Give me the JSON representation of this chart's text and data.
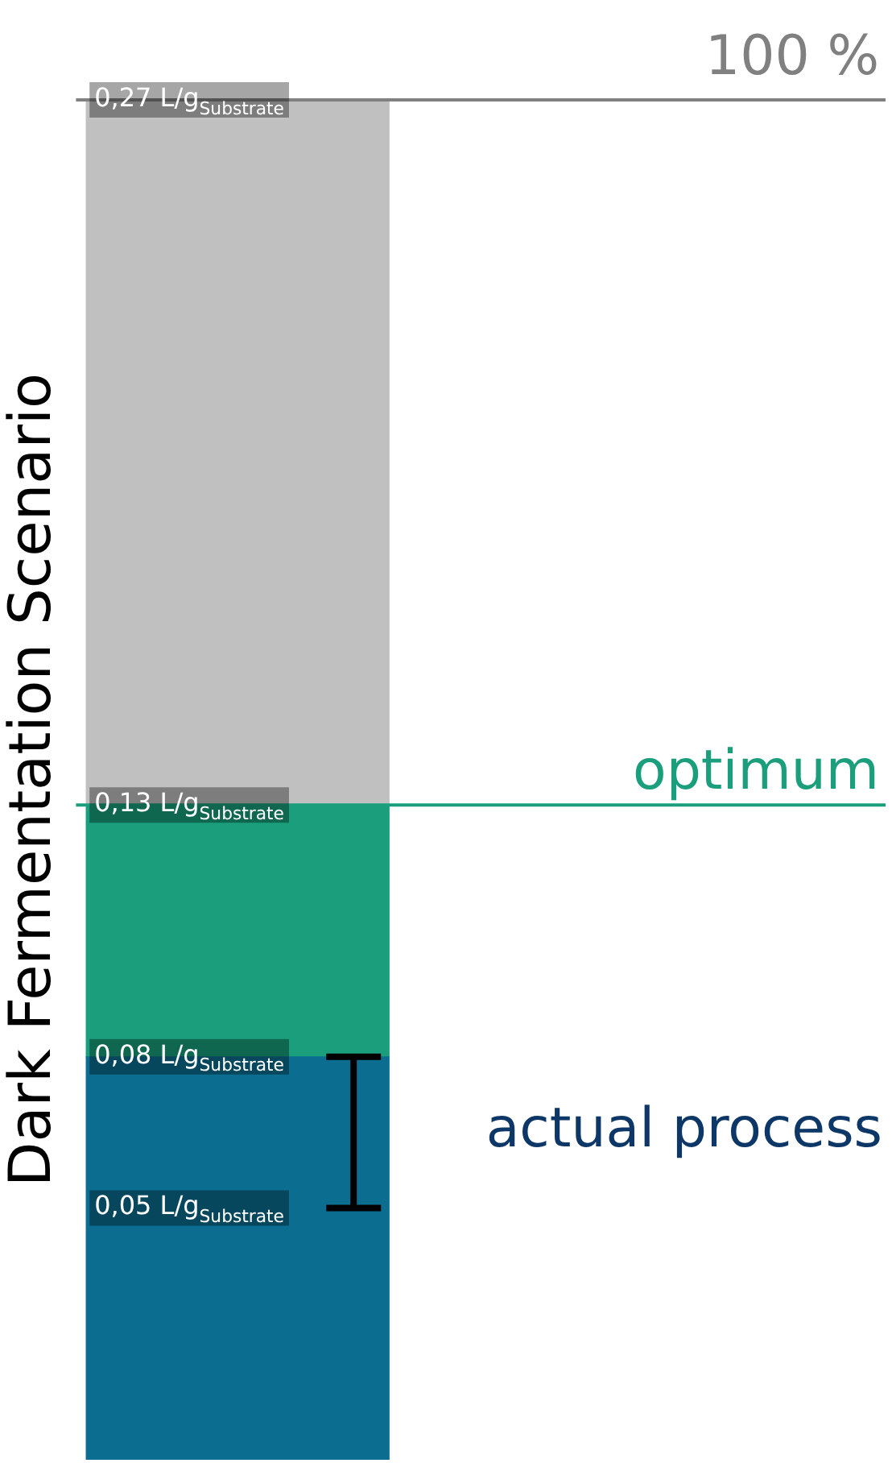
{
  "chart_data": {
    "type": "bar",
    "stacked": true,
    "ylabel": "Dark Fermentation Scenario",
    "categories": [
      null
    ],
    "series": [
      {
        "color": "#0b6d90",
        "values": [
          0.08
        ],
        "errors": [
          [
            0.05,
            0.08
          ]
        ]
      },
      {
        "color": "#1a9e7c",
        "values": [
          0.05
        ]
      },
      {
        "color": "#c0c0c0",
        "values": [
          0.14
        ]
      }
    ],
    "ylim": [
      0,
      0.27
    ],
    "tick_labels": "y",
    "grid": false,
    "legend": false,
    "yticks": [
      {
        "value": 0.27,
        "label": "0,27 L/g$_{Substrate}$"
      },
      {
        "value": 0.13,
        "label": "0,13 L/g$_{Substrate}$"
      },
      {
        "value": 0.08,
        "label": "0,08 L/g$_{Substrate}$"
      },
      {
        "value": 0.05,
        "label": "0,05 L/g$_{Substrate}$"
      }
    ],
    "ref_lines": [
      {
        "axis": "y",
        "value": 0.27,
        "color": "#808080"
      },
      {
        "axis": "y",
        "value": 0.13,
        "label": "optimum",
        "color": "#1a9e7c"
      }
    ],
    "annotations": [
      "100 %",
      "actual process"
    ]
  }
}
